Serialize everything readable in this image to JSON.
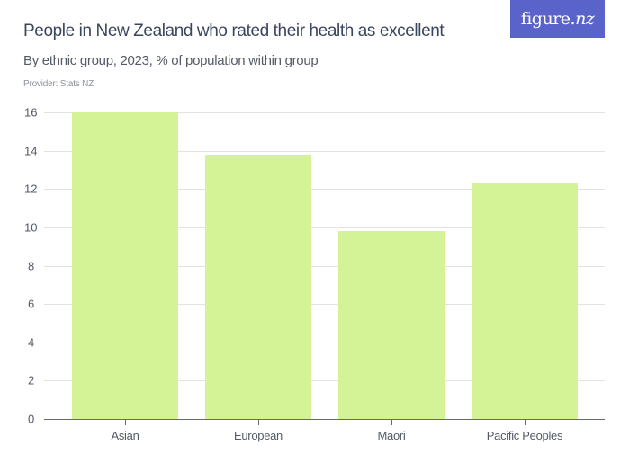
{
  "header": {
    "title": "People in New Zealand who rated their health as excellent",
    "subtitle": "By ethnic group, 2023, % of population within group",
    "provider": "Provider: Stats NZ"
  },
  "logo": {
    "text_main": "figure.",
    "text_nz": "nz",
    "background": "#5a63c9"
  },
  "colors": {
    "bar": "#d4f296",
    "title": "#3a465e",
    "grid": "#e2e2e2"
  },
  "chart_data": {
    "type": "bar",
    "title": "People in New Zealand who rated their health as excellent",
    "subtitle": "By ethnic group, 2023, % of population within group",
    "xlabel": "",
    "ylabel": "",
    "categories": [
      "Asian",
      "European",
      "Māori",
      "Pacific Peoples"
    ],
    "values": [
      16.0,
      13.8,
      9.8,
      12.3
    ],
    "ylim": [
      0,
      16
    ],
    "yticks": [
      "0",
      "2",
      "4",
      "6",
      "8",
      "10",
      "12",
      "14",
      "16"
    ],
    "grid": true,
    "legend": null
  }
}
